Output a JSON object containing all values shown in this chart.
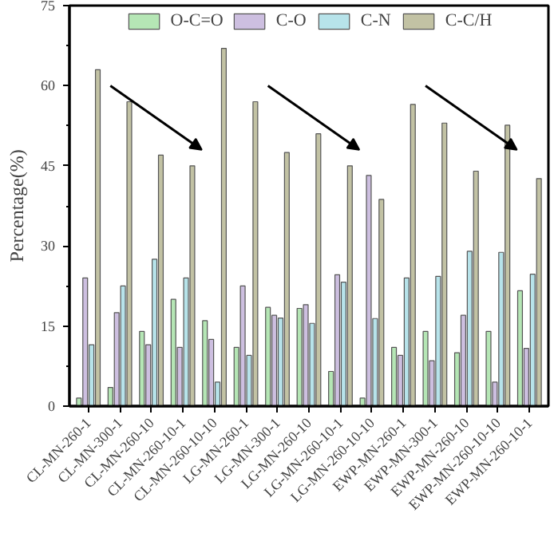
{
  "chart_data": {
    "type": "bar",
    "ylabel": "Percentage(%)",
    "categories": [
      "CL-MN-260-1",
      "CL-MN-300-1",
      "CL-MN-260-10",
      "CL-MN-260-10-1",
      "CL-MN-260-10-10",
      "LG-MN-260-1",
      "LG-MN-300-1",
      "LG-MN-260-10",
      "LG-MN-260-10-1",
      "LG-MN-260-10-10",
      "EWP-MN-260-1",
      "EWP-MN-300-1",
      "EWP-MN-260-10",
      "EWP-MN-260-10-10",
      "EWP-MN-260-10-1"
    ],
    "series": [
      {
        "name": "O-C=O",
        "color": "#b5e6b5",
        "values": [
          1.5,
          3.5,
          14,
          20,
          16,
          11,
          18.5,
          18.3,
          6.5,
          1.5,
          11,
          14,
          10,
          14,
          21.6
        ]
      },
      {
        "name": "C-O",
        "color": "#cdbfe0",
        "values": [
          24,
          17.5,
          11.5,
          11,
          12.5,
          22.5,
          17,
          19,
          24.6,
          43.2,
          9.5,
          8.5,
          17,
          4.5,
          10.8
        ]
      },
      {
        "name": "C-N",
        "color": "#b7e3ea",
        "values": [
          11.5,
          22.5,
          27.5,
          24,
          4.5,
          9.5,
          16.5,
          15.5,
          23.2,
          16.4,
          24,
          24.3,
          29,
          28.8,
          24.7
        ]
      },
      {
        "name": "C-C/H",
        "color": "#c2c2a4",
        "values": [
          63,
          57,
          47,
          45,
          67,
          57,
          47.5,
          51,
          45,
          38.7,
          56.5,
          53,
          44,
          52.6,
          42.6
        ]
      }
    ],
    "ylim": [
      0,
      75
    ],
    "yticks": [
      0,
      15,
      30,
      45,
      60,
      75
    ],
    "grid": false,
    "legend": "top"
  }
}
